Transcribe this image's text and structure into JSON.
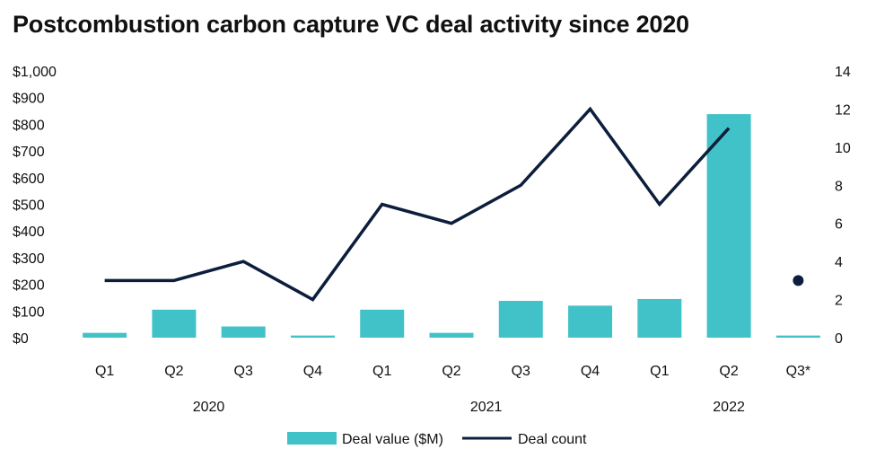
{
  "title": "Postcombustion carbon capture VC deal activity since 2020",
  "colors": {
    "bar": "#41c1c8",
    "line": "#0c1e3b"
  },
  "chart_data": {
    "type": "bar+line",
    "categories": [
      "Q1",
      "Q2",
      "Q3",
      "Q4",
      "Q1",
      "Q2",
      "Q3",
      "Q4",
      "Q1",
      "Q2",
      "Q3*"
    ],
    "years": [
      {
        "label": "2020",
        "start": 0,
        "end": 3
      },
      {
        "label": "2021",
        "start": 4,
        "end": 7
      },
      {
        "label": "2022",
        "start": 8,
        "end": 10
      }
    ],
    "series": [
      {
        "name": "Deal value ($M)",
        "type": "bar",
        "axis": "left",
        "values": [
          18,
          105,
          42,
          8,
          105,
          18,
          138,
          120,
          145,
          838,
          8
        ]
      },
      {
        "name": "Deal count",
        "type": "line",
        "axis": "right",
        "values": [
          3,
          3,
          4,
          2,
          7,
          6,
          8,
          12,
          7,
          11,
          3
        ],
        "line_through_index": 9
      }
    ],
    "y_left": {
      "min": 0,
      "max": 1000,
      "step": 100,
      "tick_labels": [
        "$0",
        "$100",
        "$200",
        "$300",
        "$400",
        "$500",
        "$600",
        "$700",
        "$800",
        "$900",
        "$1,000"
      ]
    },
    "y_right": {
      "min": 0,
      "max": 14,
      "step": 2,
      "tick_labels": [
        "0",
        "2",
        "4",
        "6",
        "8",
        "10",
        "12",
        "14"
      ]
    },
    "legend_position": "bottom",
    "grid": false
  }
}
